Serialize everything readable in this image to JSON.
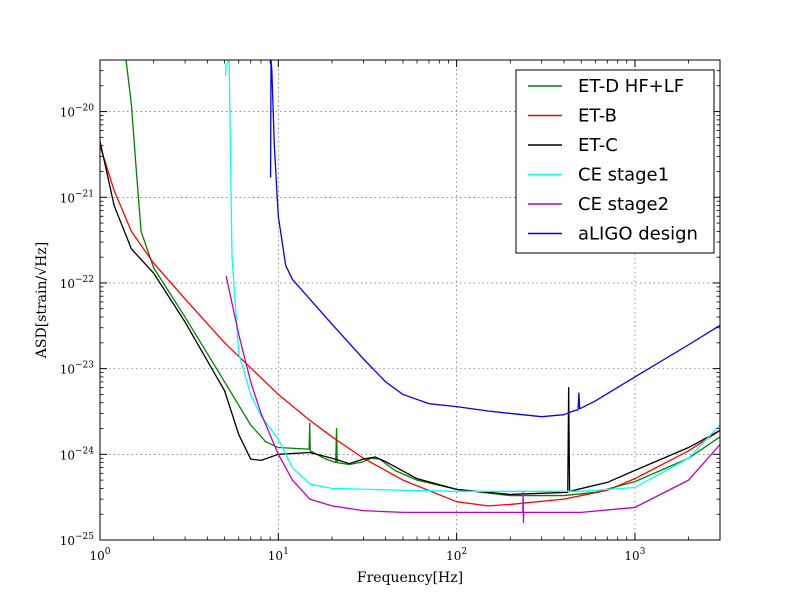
{
  "chart_data": {
    "type": "line",
    "xlabel": "Frequency[Hz]",
    "ylabel": "ASD[strain/√Hz]",
    "xscale": "log",
    "yscale": "log",
    "xlim": [
      1,
      3000
    ],
    "ylim": [
      1e-25,
      4e-20
    ],
    "grid": true,
    "legend_position": "top-right",
    "x_ticks": [
      {
        "value": 1,
        "base": "10",
        "exp": "0"
      },
      {
        "value": 10,
        "base": "10",
        "exp": "1"
      },
      {
        "value": 100,
        "base": "10",
        "exp": "2"
      },
      {
        "value": 1000,
        "base": "10",
        "exp": "3"
      }
    ],
    "y_ticks": [
      {
        "value": 1e-25,
        "base": "10",
        "exp": "−25"
      },
      {
        "value": 1e-24,
        "base": "10",
        "exp": "−24"
      },
      {
        "value": 1e-23,
        "base": "10",
        "exp": "−23"
      },
      {
        "value": 1e-22,
        "base": "10",
        "exp": "−22"
      },
      {
        "value": 1e-21,
        "base": "10",
        "exp": "−21"
      },
      {
        "value": 1e-20,
        "base": "10",
        "exp": "−20"
      }
    ],
    "series": [
      {
        "name": "ET-D HF+LF",
        "color": "#008000",
        "points": [
          [
            1.4,
            4e-20
          ],
          [
            1.5,
            1.2e-20
          ],
          [
            1.6,
            2e-21
          ],
          [
            1.7,
            4e-22
          ],
          [
            2,
            1.5e-22
          ],
          [
            3,
            4e-23
          ],
          [
            5,
            7e-24
          ],
          [
            7,
            2.2e-24
          ],
          [
            8.5,
            1.4e-24
          ],
          [
            10,
            1.2e-24
          ],
          [
            14.8,
            1.15e-24
          ],
          [
            14.9,
            1.15e-24
          ],
          [
            15,
            2.3e-24
          ],
          [
            15.1,
            1.1e-24
          ],
          [
            18,
            9e-25
          ],
          [
            21,
            8e-25
          ],
          [
            21.2,
            2e-24
          ],
          [
            21.4,
            8e-25
          ],
          [
            25,
            7.6e-25
          ],
          [
            30,
            8.2e-25
          ],
          [
            33,
            9e-25
          ],
          [
            37,
            8.8e-25
          ],
          [
            45,
            6.5e-25
          ],
          [
            60,
            5e-25
          ],
          [
            100,
            3.9e-25
          ],
          [
            200,
            3.3e-25
          ],
          [
            400,
            3.3e-25
          ],
          [
            600,
            3.6e-25
          ],
          [
            1000,
            4.8e-25
          ],
          [
            2000,
            9e-25
          ],
          [
            3000,
            1.6e-24
          ]
        ]
      },
      {
        "name": "ET-B",
        "color": "#ff0000",
        "points": [
          [
            1,
            4e-21
          ],
          [
            1.2,
            1.2e-21
          ],
          [
            1.5,
            4e-22
          ],
          [
            2,
            1.7e-22
          ],
          [
            3,
            6.5e-23
          ],
          [
            5,
            2e-23
          ],
          [
            10,
            5e-24
          ],
          [
            15,
            2.5e-24
          ],
          [
            20,
            1.6e-24
          ],
          [
            30,
            9e-25
          ],
          [
            50,
            5e-25
          ],
          [
            100,
            2.8e-25
          ],
          [
            150,
            2.5e-25
          ],
          [
            200,
            2.6e-25
          ],
          [
            400,
            3e-25
          ],
          [
            700,
            3.8e-25
          ],
          [
            1000,
            5.2e-25
          ],
          [
            2000,
            1.1e-24
          ],
          [
            3000,
            1.9e-24
          ]
        ]
      },
      {
        "name": "ET-C",
        "color": "#000000",
        "points": [
          [
            1,
            4.5e-21
          ],
          [
            1.2,
            8e-22
          ],
          [
            1.5,
            2.5e-22
          ],
          [
            2,
            1.3e-22
          ],
          [
            3,
            3.5e-23
          ],
          [
            5,
            5.5e-24
          ],
          [
            6,
            1.7e-24
          ],
          [
            7,
            8.8e-25
          ],
          [
            8,
            8.5e-25
          ],
          [
            10,
            1e-24
          ],
          [
            15,
            1.05e-24
          ],
          [
            20,
            9e-25
          ],
          [
            25,
            7.8e-25
          ],
          [
            30,
            8.8e-25
          ],
          [
            35,
            9.3e-25
          ],
          [
            40,
            8.2e-25
          ],
          [
            60,
            5.2e-25
          ],
          [
            100,
            3.9e-25
          ],
          [
            200,
            3.4e-25
          ],
          [
            420,
            3.6e-25
          ],
          [
            425,
            6e-24
          ],
          [
            430,
            3.7e-25
          ],
          [
            700,
            4.7e-25
          ],
          [
            1000,
            6.5e-25
          ],
          [
            2000,
            1.2e-24
          ],
          [
            3000,
            1.9e-24
          ]
        ]
      },
      {
        "name": "CE stage1",
        "color": "#00ffff",
        "points": [
          [
            5.05,
            2.6e-20
          ],
          [
            5.1,
            3.5e-20
          ],
          [
            5.3,
            4e-20
          ],
          [
            5.5,
            2e-22
          ],
          [
            6,
            1.5e-23
          ],
          [
            7,
            5e-24
          ],
          [
            8,
            2.8e-24
          ],
          [
            10,
            1.5e-24
          ],
          [
            12,
            7e-25
          ],
          [
            15,
            4.5e-25
          ],
          [
            20,
            4e-25
          ],
          [
            50,
            3.8e-25
          ],
          [
            100,
            3.7e-25
          ],
          [
            200,
            3.7e-25
          ],
          [
            500,
            3.7e-25
          ],
          [
            1000,
            4.1e-25
          ],
          [
            2000,
            9e-25
          ],
          [
            3000,
            2.2e-24
          ]
        ]
      },
      {
        "name": "CE stage2",
        "color": "#c000c0",
        "points": [
          [
            5.1,
            1.2e-22
          ],
          [
            6,
            2.5e-23
          ],
          [
            7,
            7e-24
          ],
          [
            8,
            3e-24
          ],
          [
            10,
            1e-24
          ],
          [
            12,
            5e-25
          ],
          [
            15,
            3e-25
          ],
          [
            20,
            2.5e-25
          ],
          [
            30,
            2.2e-25
          ],
          [
            50,
            2.1e-25
          ],
          [
            100,
            2.1e-25
          ],
          [
            235,
            2.1e-25
          ],
          [
            236,
            3.6e-25
          ],
          [
            237,
            1.6e-25
          ],
          [
            238,
            2.1e-25
          ],
          [
            500,
            2.1e-25
          ],
          [
            1000,
            2.4e-25
          ],
          [
            2000,
            5e-25
          ],
          [
            3000,
            1.3e-24
          ]
        ]
      },
      {
        "name": "aLIGO design",
        "color": "#0000ff",
        "points": [
          [
            9.05,
            1.7e-21
          ],
          [
            9.1,
            4e-20
          ],
          [
            9.2,
            3e-20
          ],
          [
            9.5,
            4e-21
          ],
          [
            10,
            6e-22
          ],
          [
            11,
            1.6e-22
          ],
          [
            12,
            1.1e-22
          ],
          [
            15,
            6.5e-23
          ],
          [
            20,
            3.3e-23
          ],
          [
            30,
            1.3e-23
          ],
          [
            40,
            7e-24
          ],
          [
            50,
            5e-24
          ],
          [
            70,
            3.9e-24
          ],
          [
            100,
            3.6e-24
          ],
          [
            150,
            3.2e-24
          ],
          [
            200,
            3e-24
          ],
          [
            300,
            2.75e-24
          ],
          [
            400,
            2.9e-24
          ],
          [
            450,
            3.2e-24
          ],
          [
            480,
            3.3e-24
          ],
          [
            485,
            5.2e-24
          ],
          [
            490,
            3.4e-24
          ],
          [
            600,
            4.2e-24
          ],
          [
            1000,
            8e-24
          ],
          [
            2000,
            1.9e-23
          ],
          [
            3000,
            3.2e-23
          ]
        ]
      }
    ]
  }
}
